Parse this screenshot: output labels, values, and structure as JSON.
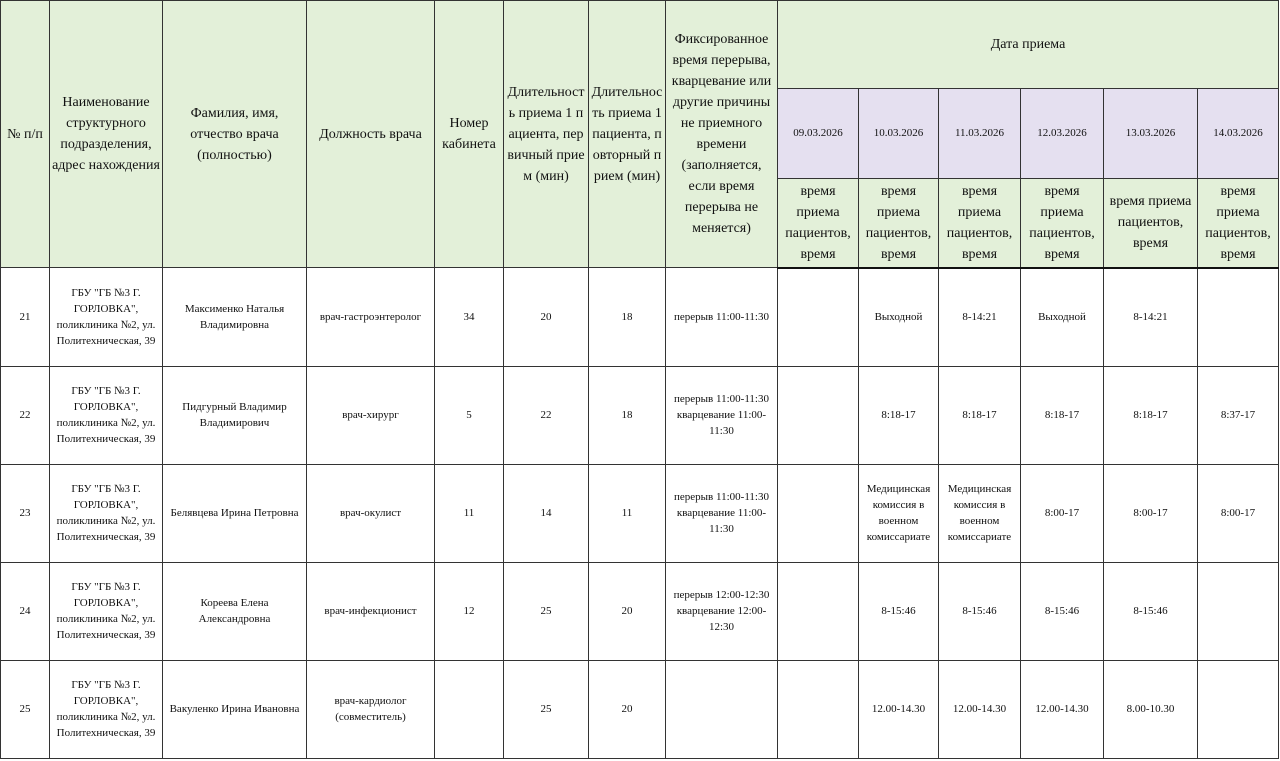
{
  "table": {
    "header": {
      "columns": [
        "№ п/п",
        "Наименование структурного подразделения, адрес нахождения",
        "Фамилия, имя, отчество врача (полностью)",
        "Должность врача",
        "Номер кабинета",
        "Длительность приема 1 пациента, первичный прием (мин)",
        "Длительность приема 1 пациента, повторный прием (мин)",
        "Фиксированное время перерыва, кварцевание или другие причины не приемного времени (заполняется, если время перерыва не меняется)"
      ],
      "date_group": "Дата приема",
      "dates": [
        "09.03.2026",
        "10.03.2026",
        "11.03.2026",
        "12.03.2026",
        "13.03.2026",
        "14.03.2026"
      ],
      "date_sub": [
        "время приема пациентов, время",
        "время приема пациентов, время",
        "время приема пациентов, время",
        "время приема пациентов, время",
        "время приема пациентов, время",
        "время приема пациентов, время"
      ]
    },
    "rows": [
      [
        21,
        "ГБУ \"ГБ №3 Г. ГОРЛОВКА\", поликлиника №2, ул. Политехническая, 39",
        "Максименко Наталья Владимировна",
        "врач-гастроэнтеролог",
        34,
        20,
        18,
        "перерыв 11:00-11:30",
        null,
        "Выходной",
        "8-14:21",
        "Выходной",
        "8-14:21",
        null
      ],
      [
        22,
        "ГБУ \"ГБ №3 Г. ГОРЛОВКА\", поликлиника №2, ул. Политехническая, 39",
        "Пидгурный Владимир Владимирович",
        "врач-хирург",
        5,
        22,
        18,
        "перерыв 11:00-11:30 кварцевание 11:00-11:30",
        null,
        "8:18-17",
        "8:18-17",
        "8:18-17",
        "8:18-17",
        "8:37-17"
      ],
      [
        23,
        "ГБУ \"ГБ №3 Г. ГОРЛОВКА\", поликлиника №2, ул. Политехническая, 39",
        "Белявцева Ирина Петровна",
        "врач-окулист",
        11,
        14,
        11,
        "перерыв 11:00-11:30 кварцевание 11:00-11:30",
        null,
        "Медицинская комиссия в военном комиссариате",
        "Медицинская комиссия в военном комиссариате",
        "8:00-17",
        "8:00-17",
        "8:00-17"
      ],
      [
        24,
        "ГБУ \"ГБ №3 Г. ГОРЛОВКА\", поликлиника №2, ул. Политехническая, 39",
        "Кореева Елена Александровна",
        "врач-инфекционист",
        12,
        25,
        20,
        "перерыв 12:00-12:30 кварцевание 12:00-12:30",
        null,
        "8-15:46",
        "8-15:46",
        "8-15:46",
        "8-15:46",
        null
      ],
      [
        25,
        "ГБУ \"ГБ №3 Г. ГОРЛОВКА\", поликлиника №2, ул. Политехническая, 39",
        "Вакуленко Ирина Ивановна",
        "врач-кардиолог (совместитель)",
        null,
        25,
        20,
        null,
        null,
        "12.00-14.30",
        "12.00-14.30",
        "12.00-14.30",
        "8.00-10.30",
        null
      ]
    ]
  }
}
